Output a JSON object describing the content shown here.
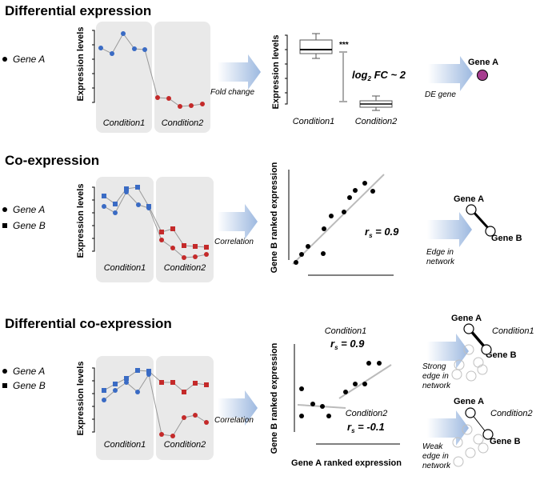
{
  "sections": [
    {
      "title": "Differential expression",
      "genes": [
        "Gene A"
      ],
      "ylabel": "Expression levels",
      "conditions": [
        "Condition1",
        "Condition2"
      ],
      "arrow1_label": "Fold change",
      "box_ylabel": "Expression levels",
      "significance": "***",
      "fc_label": "log",
      "fc_sub": "2",
      "fc_rest": " FC ~ 2",
      "box_conditions": [
        "Condition1",
        "Condition2"
      ],
      "arrow2_label": "DE gene",
      "node_label": "Gene A"
    },
    {
      "title": "Co-expression",
      "genes": [
        "Gene A",
        "Gene B"
      ],
      "ylabel": "Expression levels",
      "conditions": [
        "Condition1",
        "Condition2"
      ],
      "arrow1_label": "Correlation",
      "scatter_ylabel": "Gene B ranked expression",
      "rs_sym": "r",
      "rs_sub": "s",
      "rs_value": " = 0.9",
      "arrow2_label": [
        "Edge in",
        "network"
      ],
      "node_labels": [
        "Gene A",
        "Gene B"
      ]
    },
    {
      "title": "Differential co-expression",
      "genes": [
        "Gene A",
        "Gene B"
      ],
      "ylabel": "Expression levels",
      "conditions": [
        "Condition1",
        "Condition2"
      ],
      "arrow1_label": "Correlation",
      "scatter_ylabel": "Gene B ranked expression",
      "scatter_xlabel": "Gene A ranked expression",
      "cond1_label": "Condition1",
      "cond1_rs": " = 0.9",
      "cond2_label": "Condition2",
      "cond2_rs": " = -0.1",
      "rs_sym": "r",
      "rs_sub": "s",
      "net1_label": "Condition1",
      "net1_caption": [
        "Strong",
        "edge in",
        "network"
      ],
      "net2_label": "Condition2",
      "net2_caption": [
        "Weak",
        "edge in",
        "network"
      ],
      "node_labels": [
        "Gene A",
        "Gene B"
      ]
    }
  ],
  "colors": {
    "gene_a": "#3a6bc4",
    "gene_b": "#c42a2a",
    "panel": "#e9e9e9",
    "arrow": "#9db9e0",
    "node": "#a63c8f",
    "line": "#999999"
  }
}
